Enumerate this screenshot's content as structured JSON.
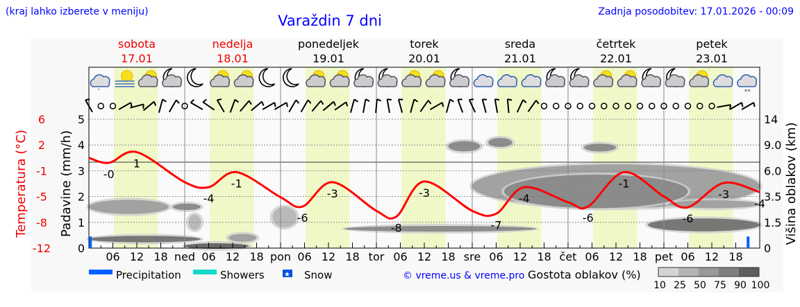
{
  "header": {
    "note": "(kraj lahko izberete v meniju)",
    "title": "Varaždin 7 dni",
    "updated": "Zadnja posodobitev: 17.01.2026 - 00:09"
  },
  "days": [
    {
      "name": "sobota",
      "date": "17.01",
      "weekend": true,
      "short": ""
    },
    {
      "name": "nedelja",
      "date": "18.01",
      "weekend": true,
      "short": "ned"
    },
    {
      "name": "ponedeljek",
      "date": "19.01",
      "weekend": false,
      "short": "pon"
    },
    {
      "name": "torek",
      "date": "20.01",
      "weekend": false,
      "short": "tor"
    },
    {
      "name": "sreda",
      "date": "21.01",
      "weekend": false,
      "short": "sre"
    },
    {
      "name": "četrtek",
      "date": "22.01",
      "weekend": false,
      "short": "čet"
    },
    {
      "name": "petek",
      "date": "23.01",
      "weekend": false,
      "short": "pet"
    }
  ],
  "hour_ticks": [
    "06",
    "12",
    "18"
  ],
  "colors": {
    "temp": "#ff0000",
    "daylight": "#f0f8c8",
    "precip": "#0060ff",
    "showers": "#10d8c8",
    "text_blue": "#0000ff"
  },
  "chart_data": {
    "type": "line",
    "title": "Varaždin 7 dni",
    "x_unit": "hours since 17.01 00:00",
    "xlim": [
      0,
      168
    ],
    "left_axis": {
      "label": "Padavine (mm/h)",
      "ticks": [
        "0",
        "1",
        "2",
        "3",
        "4",
        "5"
      ],
      "ylim": [
        0,
        5
      ]
    },
    "temp_axis": {
      "label": "Temperatura (°C)",
      "ticks": [
        "-12",
        "-8",
        "-5",
        "-1",
        "2",
        "6"
      ],
      "ylim": [
        -12,
        6
      ]
    },
    "right_axis": {
      "label": "Višina oblakov (km)",
      "ticks": [
        "0",
        "1.5",
        "3.5",
        "6.0",
        "9.0",
        "14"
      ]
    },
    "temperature": {
      "x": [
        0,
        5,
        12,
        24,
        30,
        37,
        48,
        53.5,
        61,
        72,
        77,
        84,
        96,
        102,
        109,
        120,
        125,
        134,
        144,
        150,
        159,
        168
      ],
      "y": [
        0.6,
        -0.1,
        1.4,
        -2.8,
        -3.5,
        -1.4,
        -4.9,
        -6.2,
        -2.8,
        -6.8,
        -7.6,
        -2.7,
        -6.8,
        -7.2,
        -3.5,
        -5.6,
        -6.2,
        -1.4,
        -4.8,
        -6.3,
        -2.9,
        -4.2
      ]
    },
    "temp_labels": [
      {
        "x": 5,
        "t": -0.1,
        "text": "-0",
        "pos": "below"
      },
      {
        "x": 12,
        "t": 1.4,
        "text": "1",
        "pos": "below"
      },
      {
        "x": 30,
        "t": -3.5,
        "text": "-4",
        "pos": "below"
      },
      {
        "x": 37,
        "t": -1.4,
        "text": "-1",
        "pos": "below"
      },
      {
        "x": 53.5,
        "t": -6.2,
        "text": "-6",
        "pos": "below"
      },
      {
        "x": 61,
        "t": -2.8,
        "text": "-3",
        "pos": "below"
      },
      {
        "x": 77,
        "t": -7.6,
        "text": "-8",
        "pos": "below"
      },
      {
        "x": 84,
        "t": -2.7,
        "text": "-3",
        "pos": "below"
      },
      {
        "x": 102,
        "t": -7.2,
        "text": "-7",
        "pos": "below"
      },
      {
        "x": 109,
        "t": -3.5,
        "text": "-4",
        "pos": "below"
      },
      {
        "x": 125,
        "t": -6.2,
        "text": "-6",
        "pos": "below"
      },
      {
        "x": 134,
        "t": -1.4,
        "text": "-1",
        "pos": "below"
      },
      {
        "x": 150,
        "t": -6.3,
        "text": "-6",
        "pos": "below"
      },
      {
        "x": 159,
        "t": -2.9,
        "text": "-3",
        "pos": "below"
      },
      {
        "x": 168,
        "t": -4.2,
        "text": "-4",
        "pos": "below"
      }
    ],
    "daylight": {
      "start_h": 6.3,
      "end_h": 17.3
    },
    "precipitation": [
      {
        "x": 0.3,
        "value": 0.45,
        "type": "precipitation"
      },
      {
        "x": 165,
        "value": 0.45,
        "type": "snow"
      }
    ],
    "cloud_patches": [
      {
        "from": 0,
        "to": 28,
        "level": 0.35,
        "thick": 0.25,
        "density": 90
      },
      {
        "from": 0,
        "to": 20,
        "level": 1.6,
        "thick": 0.55,
        "density": 60
      },
      {
        "from": 21,
        "to": 28,
        "level": 1.6,
        "thick": 0.25,
        "density": 75
      },
      {
        "from": 25,
        "to": 28,
        "level": 1.0,
        "thick": 0.6,
        "density": 25
      },
      {
        "from": 24,
        "to": 40,
        "level": 0.08,
        "thick": 0.15,
        "density": 95
      },
      {
        "from": 35,
        "to": 42,
        "level": 0.4,
        "thick": 0.3,
        "density": 60
      },
      {
        "from": 46,
        "to": 52,
        "level": 1.2,
        "thick": 0.8,
        "density": 25
      },
      {
        "from": 64,
        "to": 112,
        "level": 0.75,
        "thick": 0.22,
        "density": 75
      },
      {
        "from": 90,
        "to": 98,
        "level": 3.95,
        "thick": 0.4,
        "density": 75
      },
      {
        "from": 100,
        "to": 106,
        "level": 4.1,
        "thick": 0.35,
        "density": 75
      },
      {
        "from": 96,
        "to": 168,
        "level": 2.4,
        "thick": 1.7,
        "density": 50
      },
      {
        "from": 104,
        "to": 150,
        "level": 2.2,
        "thick": 1.3,
        "density": 75
      },
      {
        "from": 124,
        "to": 132,
        "level": 3.9,
        "thick": 0.3,
        "density": 75
      },
      {
        "from": 140,
        "to": 168,
        "level": 0.9,
        "thick": 0.5,
        "density": 90
      },
      {
        "from": 145,
        "to": 168,
        "level": 1.7,
        "thick": 0.3,
        "density": 50
      }
    ],
    "icons": [
      "rain-cloud",
      "sun-fog",
      "sun-cloud",
      "moon-cloud",
      "moon",
      "sun-cloud",
      "sun-cloud",
      "moon",
      "moon",
      "sun-cloud",
      "sun-cloud",
      "moon-cloud",
      "moon-cloud",
      "sun-cloud",
      "sun-cloud",
      "moon-cloud",
      "cloud",
      "cloud",
      "cloud",
      "moon-cloud",
      "moon-cloud",
      "sun-cloud",
      "sun-cloud",
      "moon-cloud",
      "moon-cloud",
      "sun-cloud",
      "cloud",
      "snow-cloud"
    ],
    "wind_tilt_deg": [
      -30,
      null,
      null,
      60,
      75,
      50,
      15,
      30,
      null,
      -60,
      -55,
      -30,
      20,
      40,
      50,
      60,
      60,
      30,
      30,
      40,
      50,
      55,
      15,
      10,
      5,
      -10,
      -15,
      15,
      35,
      60,
      15,
      -20,
      -25,
      -15,
      -10,
      -5,
      25,
      35,
      null,
      null,
      null,
      null,
      null,
      null,
      null,
      null,
      null,
      null,
      null,
      null,
      null,
      null,
      null,
      80,
      60,
      60
    ]
  },
  "legend": {
    "precipitation": "Precipitation",
    "showers": "Showers",
    "snow": "Snow",
    "copyright": "© vreme.us & vreme.pro",
    "density_title": "Gostota oblakov (%)",
    "density_levels": [
      "10",
      "25",
      "50",
      "75",
      "90",
      "100"
    ]
  }
}
